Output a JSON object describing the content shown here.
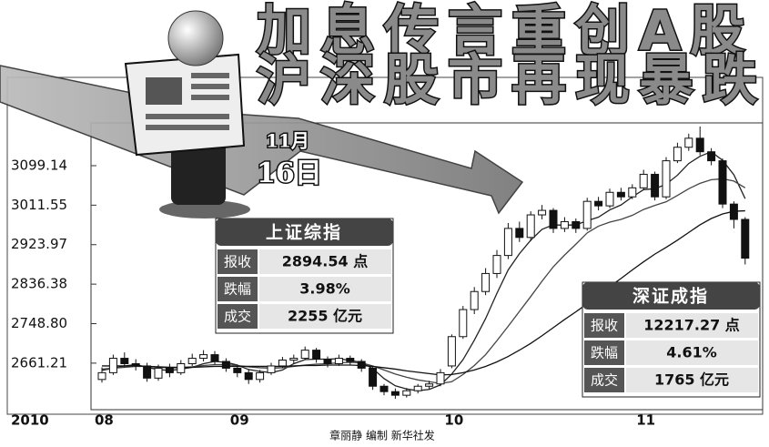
{
  "chart_data": {
    "type": "candlestick",
    "title_lines": [
      "加息传言重创A股",
      "沪深股市再现暴跌"
    ],
    "date": {
      "month": "11月",
      "day": "16日"
    },
    "year_label": "2010",
    "categories": [
      "08",
      null,
      null,
      null,
      null,
      null,
      null,
      null,
      null,
      null,
      null,
      null,
      "09",
      null,
      null,
      null,
      null,
      null,
      null,
      null,
      null,
      null,
      null,
      null,
      null,
      null,
      null,
      null,
      null,
      null,
      null,
      "10",
      null,
      null,
      null,
      null,
      null,
      null,
      null,
      null,
      null,
      null,
      null,
      null,
      null,
      null,
      null,
      null,
      "11",
      null,
      null,
      null,
      null,
      null,
      null,
      null,
      null,
      null
    ],
    "open": [
      2625,
      2640,
      2672,
      2660,
      2655,
      2628,
      2650,
      2640,
      2660,
      2672,
      2680,
      2665,
      2650,
      2640,
      2625,
      2640,
      2655,
      2668,
      2672,
      2690,
      2670,
      2660,
      2672,
      2665,
      2650,
      2610,
      2598,
      2590,
      2600,
      2610,
      2615,
      2655,
      2720,
      2780,
      2820,
      2860,
      2900,
      2960,
      2940,
      2990,
      3000,
      2960,
      2975,
      2960,
      3020,
      3010,
      3040,
      3030,
      3050,
      3080,
      3030,
      3110,
      3140,
      3160,
      3130,
      3110,
      3014,
      2980
    ],
    "high": [
      2652,
      2680,
      2685,
      2670,
      2662,
      2658,
      2660,
      2668,
      2682,
      2690,
      2688,
      2672,
      2658,
      2648,
      2646,
      2662,
      2675,
      2680,
      2698,
      2695,
      2676,
      2680,
      2678,
      2670,
      2655,
      2615,
      2605,
      2606,
      2615,
      2622,
      2648,
      2725,
      2788,
      2830,
      2872,
      2912,
      2972,
      2975,
      2998,
      3012,
      3005,
      2985,
      2982,
      3028,
      3030,
      3048,
      3050,
      3058,
      3090,
      3086,
      3118,
      3150,
      3170,
      3186,
      3138,
      3115,
      3020,
      2985
    ],
    "low": [
      2618,
      2635,
      2652,
      2645,
      2620,
      2622,
      2630,
      2635,
      2655,
      2665,
      2658,
      2642,
      2630,
      2615,
      2618,
      2635,
      2650,
      2660,
      2668,
      2662,
      2652,
      2655,
      2658,
      2642,
      2602,
      2590,
      2582,
      2585,
      2594,
      2604,
      2610,
      2650,
      2715,
      2770,
      2812,
      2850,
      2892,
      2930,
      2932,
      2980,
      2950,
      2952,
      2950,
      2955,
      3000,
      3005,
      3022,
      3025,
      3045,
      3022,
      3025,
      3105,
      3132,
      3122,
      3100,
      3005,
      2960,
      2880
    ],
    "close": [
      2640,
      2672,
      2660,
      2655,
      2628,
      2650,
      2640,
      2660,
      2672,
      2680,
      2665,
      2650,
      2640,
      2625,
      2640,
      2655,
      2668,
      2672,
      2690,
      2670,
      2660,
      2672,
      2665,
      2650,
      2610,
      2598,
      2590,
      2600,
      2610,
      2615,
      2640,
      2720,
      2780,
      2820,
      2860,
      2900,
      2960,
      2940,
      2990,
      3000,
      2960,
      2975,
      2960,
      3020,
      3010,
      3040,
      3030,
      3050,
      3080,
      3030,
      3110,
      3140,
      3160,
      3130,
      3110,
      3014,
      2980,
      2894
    ],
    "lines": [
      {
        "color": "#222",
        "values": [
          2645,
          2650,
          2655,
          2658,
          2652,
          2647,
          2645,
          2648,
          2652,
          2660,
          2665,
          2663,
          2657,
          2647,
          2643,
          2640,
          2646,
          2660,
          2669,
          2670,
          2670,
          2671,
          2667,
          2663,
          2649,
          2627,
          2611,
          2604,
          2600,
          2603,
          2613,
          2637,
          2669,
          2712,
          2760,
          2816,
          2868,
          2904,
          2934,
          2958,
          2968,
          2967,
          2968,
          2977,
          2985,
          3001,
          3012,
          3030,
          3046,
          3048,
          3058,
          3078,
          3104,
          3120,
          3130,
          3111,
          3079,
          3026
        ]
      },
      {
        "color": "#444",
        "values": [
          2648,
          2650,
          2652,
          2654,
          2654,
          2652,
          2651,
          2651,
          2653,
          2656,
          2658,
          2658,
          2656,
          2653,
          2651,
          2650,
          2651,
          2654,
          2657,
          2659,
          2660,
          2662,
          2663,
          2662,
          2655,
          2646,
          2637,
          2630,
          2624,
          2620,
          2616,
          2620,
          2636,
          2656,
          2680,
          2711,
          2743,
          2776,
          2809,
          2843,
          2875,
          2901,
          2925,
          2950,
          2965,
          2974,
          2980,
          2989,
          3002,
          3011,
          3019,
          3033,
          3048,
          3060,
          3068,
          3070,
          3065,
          3050
        ]
      },
      {
        "color": "#111",
        "values": [
          2655,
          2655,
          2655,
          2655,
          2654,
          2653,
          2652,
          2652,
          2652,
          2653,
          2654,
          2654,
          2654,
          2654,
          2654,
          2654,
          2654,
          2655,
          2656,
          2656,
          2657,
          2657,
          2657,
          2656,
          2654,
          2651,
          2648,
          2644,
          2641,
          2638,
          2635,
          2636,
          2640,
          2646,
          2654,
          2664,
          2676,
          2690,
          2705,
          2722,
          2740,
          2758,
          2775,
          2793,
          2812,
          2831,
          2849,
          2868,
          2886,
          2903,
          2918,
          2934,
          2951,
          2968,
          2982,
          2992,
          2998,
          2999
        ]
      }
    ],
    "ylim": [
      2558,
      3194
    ],
    "yticks": [
      2661.21,
      {
        "value": 2748.8,
        "label": "2748.80"
      },
      2836.38,
      2923.97,
      3011.55,
      3099.14
    ],
    "grid": false,
    "panels": [
      {
        "name": "上证综指",
        "rows": [
          [
            "报收",
            "2894.54 点"
          ],
          [
            "跌幅",
            "3.98%"
          ],
          [
            "成交",
            "2255 亿元"
          ]
        ]
      },
      {
        "name": "深证成指",
        "rows": [
          [
            "报收",
            "12217.27 点"
          ],
          [
            "跌幅",
            "4.61%"
          ],
          [
            "成交",
            "1765 亿元"
          ]
        ]
      }
    ],
    "credit": "章丽静 编制 新华社发"
  }
}
